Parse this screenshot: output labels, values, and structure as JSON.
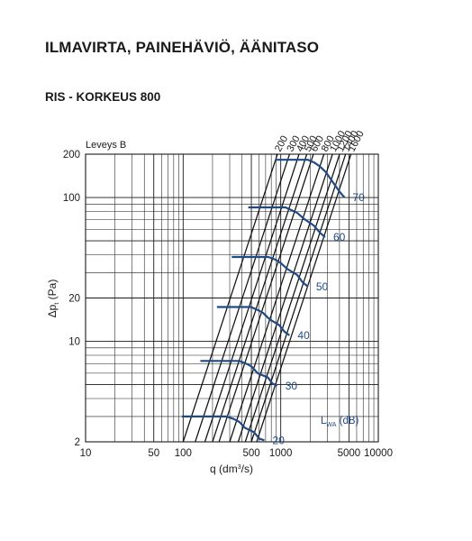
{
  "page": {
    "title": "ILMAVIRTA, PAINEHÄVIÖ, ÄÄNITASO",
    "subtitle": "RIS - KORKEUS 800"
  },
  "chart_data": {
    "type": "line",
    "scale": "log-log",
    "legend_title": "Leveys B",
    "xlabel": {
      "main": "q (dm",
      "sup": "3",
      "tail": "/s)"
    },
    "ylabel": {
      "main": "Δp",
      "sub": "t",
      "tail": " (Pa)"
    },
    "noise_label": {
      "main": "L",
      "sub": "WA",
      "tail": " (dB)"
    },
    "xlim": [
      10,
      10000
    ],
    "ylim": [
      2,
      200
    ],
    "x_ticks": [
      10,
      50,
      100,
      500,
      1000,
      5000,
      10000
    ],
    "x_tick_labels": [
      "10",
      "50",
      "100",
      "500",
      "1000",
      "5000",
      "10000"
    ],
    "y_ticks": [
      2,
      10,
      20,
      100,
      200
    ],
    "y_tick_labels": [
      "2",
      "10",
      "20",
      "100",
      "200"
    ],
    "grid": true,
    "width_series": [
      {
        "name": "200",
        "points": [
          [
            100,
            2
          ],
          [
            925,
            200
          ]
        ]
      },
      {
        "name": "300",
        "points": [
          [
            133,
            2
          ],
          [
            1230,
            200
          ]
        ]
      },
      {
        "name": "400",
        "points": [
          [
            167,
            2
          ],
          [
            1540,
            200
          ]
        ]
      },
      {
        "name": "500",
        "points": [
          [
            200,
            2
          ],
          [
            1850,
            200
          ]
        ]
      },
      {
        "name": "600",
        "points": [
          [
            233,
            2
          ],
          [
            2160,
            200
          ]
        ]
      },
      {
        "name": "800",
        "points": [
          [
            300,
            2
          ],
          [
            2770,
            200
          ]
        ]
      },
      {
        "name": "1000",
        "points": [
          [
            367,
            2
          ],
          [
            3390,
            200
          ]
        ]
      },
      {
        "name": "1200",
        "points": [
          [
            433,
            2
          ],
          [
            4010,
            200
          ]
        ]
      },
      {
        "name": "1400",
        "points": [
          [
            500,
            2
          ],
          [
            4620,
            200
          ]
        ]
      },
      {
        "name": "1600",
        "points": [
          [
            567,
            2
          ],
          [
            5240,
            200
          ]
        ]
      }
    ],
    "noise_series": [
      {
        "name": "20",
        "points": [
          [
            97,
            3.0
          ],
          [
            277,
            3.0
          ],
          [
            330,
            2.88
          ],
          [
            376,
            2.75
          ],
          [
            430,
            2.5
          ],
          [
            533,
            2.33
          ],
          [
            605,
            2.1
          ],
          [
            680,
            2.05
          ]
        ]
      },
      {
        "name": "30",
        "points": [
          [
            150,
            7.3
          ],
          [
            376,
            7.3
          ],
          [
            440,
            7.0
          ],
          [
            500,
            6.7
          ],
          [
            580,
            6.0
          ],
          [
            740,
            5.6
          ],
          [
            820,
            5.1
          ],
          [
            920,
            4.9
          ]
        ]
      },
      {
        "name": "40",
        "points": [
          [
            222,
            17.3
          ],
          [
            495,
            17.3
          ],
          [
            580,
            16.5
          ],
          [
            655,
            15.8
          ],
          [
            770,
            14.2
          ],
          [
            960,
            13.0
          ],
          [
            1100,
            11.6
          ],
          [
            1230,
            11.0
          ]
        ]
      },
      {
        "name": "50",
        "points": [
          [
            315,
            38.6
          ],
          [
            745,
            38.6
          ],
          [
            880,
            37.0
          ],
          [
            1000,
            35.0
          ],
          [
            1170,
            31.8
          ],
          [
            1470,
            29.0
          ],
          [
            1670,
            25.8
          ],
          [
            1900,
            24.0
          ]
        ]
      },
      {
        "name": "60",
        "points": [
          [
            465,
            85.3
          ],
          [
            1120,
            85.3
          ],
          [
            1300,
            81.5
          ],
          [
            1480,
            78.0
          ],
          [
            1730,
            71.0
          ],
          [
            2170,
            64.0
          ],
          [
            2530,
            56.8
          ],
          [
            2850,
            53.0
          ]
        ]
      },
      {
        "name": "70",
        "points": [
          [
            880,
            183
          ],
          [
            1900,
            183
          ],
          [
            2200,
            175
          ],
          [
            2500,
            165
          ],
          [
            2900,
            150
          ],
          [
            3500,
            125
          ],
          [
            4000,
            110
          ],
          [
            4500,
            100
          ]
        ]
      }
    ],
    "noise_label_values": [
      "20",
      "30",
      "40",
      "50",
      "60",
      "70"
    ],
    "colors": {
      "grid": "#1a1a1a",
      "width_lines": "#111111",
      "noise_lines": "#1f4a86",
      "noise_text": "#1f4a86"
    }
  }
}
